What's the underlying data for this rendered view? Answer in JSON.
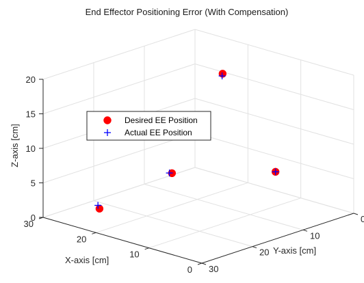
{
  "chart_data": {
    "type": "scatter3d",
    "title": "End Effector Positioning Error (With Compensation)",
    "xlabel": "X-axis [cm]",
    "ylabel": "Y-axis [cm]",
    "zlabel": "Z-axis [cm]",
    "xlim": [
      0,
      30
    ],
    "ylim": [
      0,
      30
    ],
    "zlim": [
      0,
      20
    ],
    "xticks": [
      0,
      10,
      20,
      30
    ],
    "yticks": [
      0,
      10,
      20,
      30
    ],
    "zticks": [
      0,
      5,
      10,
      15,
      20
    ],
    "x_tick_labels": [
      "0",
      "10",
      "20",
      "30"
    ],
    "y_tick_labels": [
      "0",
      "10",
      "20",
      "30"
    ],
    "z_tick_labels": [
      "0",
      "5",
      "10",
      "15",
      "20"
    ],
    "grid": true,
    "legend_position": "left",
    "series": [
      {
        "name": "Desired EE Position",
        "marker": "filled-circle",
        "color": "#ff0000",
        "points": [
          {
            "x": 27,
            "y": 22,
            "z": 0
          },
          {
            "x": 20,
            "y": 15,
            "z": 5
          },
          {
            "x": 10,
            "y": 5,
            "z": 5
          },
          {
            "x": 20,
            "y": 12,
            "z": 10
          },
          {
            "x": 20,
            "y": 5,
            "z": 17
          }
        ]
      },
      {
        "name": "Actual EE Position",
        "marker": "plus",
        "color": "#0000ff",
        "points": [
          {
            "x": 27.1,
            "y": 22.2,
            "z": 0.5
          },
          {
            "x": 20.1,
            "y": 15.4,
            "z": 5.1
          },
          {
            "x": 10,
            "y": 5,
            "z": 5
          },
          {
            "x": 20.2,
            "y": 12.1,
            "z": 9.9
          },
          {
            "x": 20,
            "y": 5.1,
            "z": 16.7
          }
        ]
      }
    ]
  }
}
